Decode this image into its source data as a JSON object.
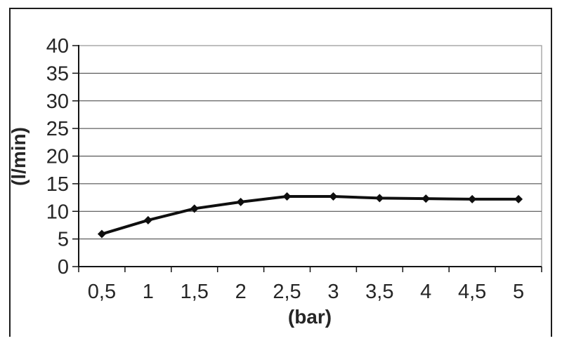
{
  "figure": {
    "frame_color": "#1c1c1c",
    "background_color": "#ffffff",
    "text_color": "#262626"
  },
  "chart_data": {
    "type": "line",
    "xlabel": "(bar)",
    "ylabel": "(l/min)",
    "categories": [
      "0,5",
      "1",
      "1,5",
      "2",
      "2,5",
      "3",
      "3,5",
      "4",
      "4,5",
      "5"
    ],
    "values": [
      5.9,
      8.4,
      10.5,
      11.7,
      12.7,
      12.7,
      12.4,
      12.3,
      12.2,
      12.2
    ],
    "y_ticks": [
      0,
      5,
      10,
      15,
      20,
      25,
      30,
      35,
      40
    ],
    "ylim": [
      0,
      40
    ],
    "grid": true,
    "legend_position": "none",
    "line_color": "#0f0f0f",
    "marker": "diamond",
    "marker_color": "#0f0f0f",
    "gridline_color": "#3a3a3a",
    "plot_border_color": "#969696",
    "axis_color": "#141414"
  }
}
